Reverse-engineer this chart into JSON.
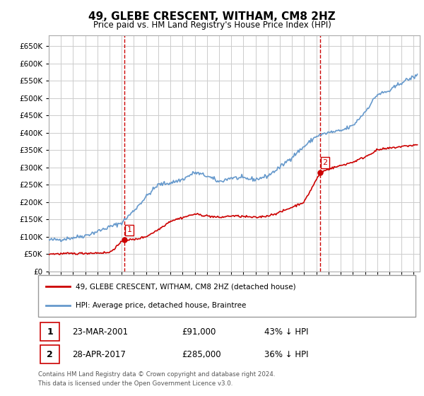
{
  "title": "49, GLEBE CRESCENT, WITHAM, CM8 2HZ",
  "subtitle": "Price paid vs. HM Land Registry's House Price Index (HPI)",
  "legend_line1": "49, GLEBE CRESCENT, WITHAM, CM8 2HZ (detached house)",
  "legend_line2": "HPI: Average price, detached house, Braintree",
  "footer1": "Contains HM Land Registry data © Crown copyright and database right 2024.",
  "footer2": "This data is licensed under the Open Government Licence v3.0.",
  "table": [
    {
      "num": "1",
      "date": "23-MAR-2001",
      "price": "£91,000",
      "hpi": "43% ↓ HPI"
    },
    {
      "num": "2",
      "date": "28-APR-2017",
      "price": "£285,000",
      "hpi": "36% ↓ HPI"
    }
  ],
  "marker1": {
    "x_year": 2001.22,
    "y": 91000,
    "label": "1"
  },
  "marker2": {
    "x_year": 2017.32,
    "y": 285000,
    "label": "2"
  },
  "vline1_x": 2001.22,
  "vline2_x": 2017.32,
  "hpi_color": "#6699cc",
  "price_color": "#cc0000",
  "vline_color": "#cc0000",
  "ylim": [
    0,
    680000
  ],
  "xlim_start": 1995.0,
  "xlim_end": 2025.5,
  "background_color": "#ffffff",
  "grid_color": "#cccccc"
}
